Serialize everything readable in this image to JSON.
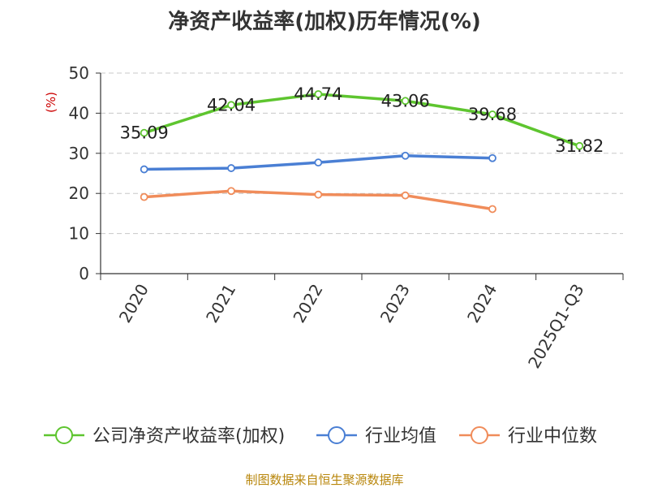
{
  "title": "净资产收益率(加权)历年情况(%)",
  "source": "制图数据来自恒生聚源数据库",
  "chart_data": {
    "type": "line",
    "title": "净资产收益率(加权)历年情况(%)",
    "ylabel": "(%)",
    "xlabel": "",
    "categories": [
      "2020",
      "2021",
      "2022",
      "2023",
      "2024",
      "2025Q1-Q3"
    ],
    "ylim": [
      0,
      50
    ],
    "yticks": [
      0,
      10,
      20,
      30,
      40,
      50
    ],
    "grid": "horizontal dashed",
    "legend_position": "bottom",
    "series": [
      {
        "name": "公司净资产收益率(加权)",
        "color": "#5ec52f",
        "values": [
          35.09,
          42.04,
          44.74,
          43.06,
          39.68,
          31.82
        ],
        "labels": [
          "35.09",
          "42.04",
          "44.74",
          "43.06",
          "39.68",
          "31.82"
        ]
      },
      {
        "name": "行业均值",
        "color": "#4a7fd4",
        "values": [
          26.0,
          26.3,
          27.7,
          29.4,
          28.8,
          null
        ]
      },
      {
        "name": "行业中位数",
        "color": "#f08c5a",
        "values": [
          19.1,
          20.6,
          19.7,
          19.5,
          16.1,
          null
        ]
      }
    ]
  }
}
